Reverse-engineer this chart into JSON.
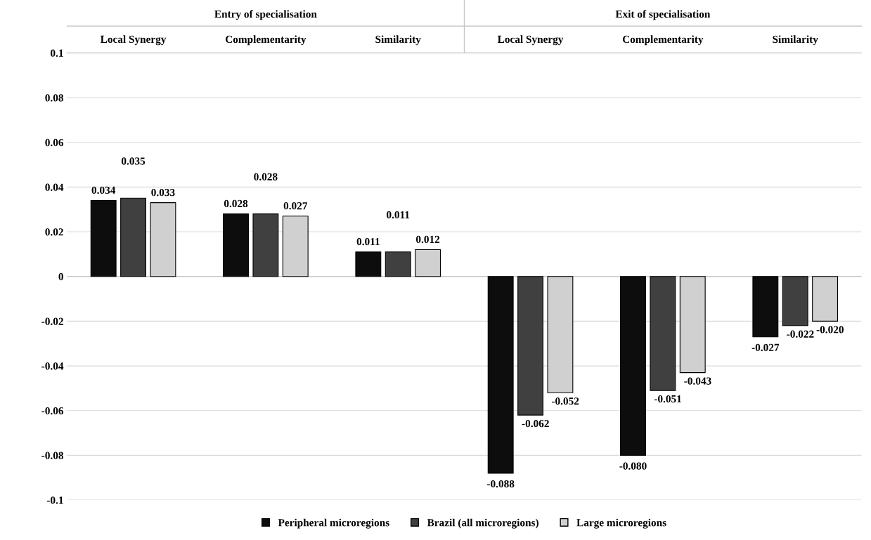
{
  "chart_data": {
    "type": "bar",
    "categories": [
      "Local Synergy",
      "Complementarity",
      "Similarity",
      "Local Synergy",
      "Complementarity",
      "Similarity"
    ],
    "series": [
      {
        "name": "Peripheral microregions",
        "color": "#0d0d0d",
        "values": [
          0.034,
          0.028,
          0.011,
          -0.088,
          -0.08,
          -0.027
        ],
        "value_labels": [
          "0.034",
          "0.028",
          "0.011",
          "-0.088",
          "-0.080",
          "-0.027"
        ]
      },
      {
        "name": "Brazil (all microregions)",
        "color": "#404040",
        "values": [
          0.035,
          0.028,
          0.011,
          -0.062,
          -0.051,
          -0.022
        ],
        "value_labels": [
          "0.035",
          "0.028",
          "0.011",
          "-0.062",
          "-0.051",
          "-0.022"
        ]
      },
      {
        "name": "Large microregions",
        "color": "#d0d0d0",
        "values": [
          0.033,
          0.027,
          0.012,
          -0.052,
          -0.043,
          -0.02
        ],
        "value_labels": [
          "0.033",
          "0.027",
          "0.012",
          "-0.052",
          "-0.043",
          "-0.020"
        ]
      }
    ],
    "annotations": [
      "Entry of specialisation",
      "Exit of specialisation"
    ],
    "ylim": [
      -0.1,
      0.1
    ],
    "yticks": [
      {
        "value": -0.1,
        "label": "-0.1"
      },
      -0.08,
      -0.06,
      -0.04,
      -0.02,
      0,
      0.02,
      0.04,
      0.06,
      0.08,
      0.1
    ],
    "grid": "y",
    "legend": "bottom"
  }
}
